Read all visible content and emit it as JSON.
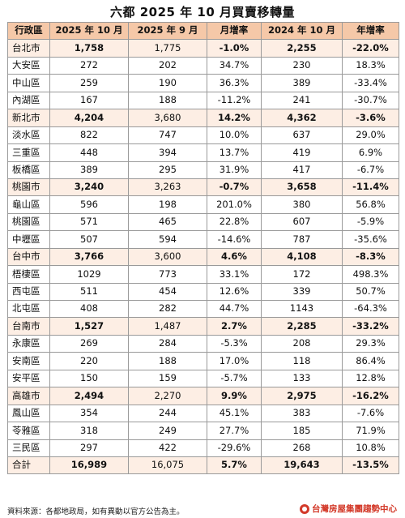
{
  "title": "六都 2025 年 10 月買賣移轉量",
  "headers": [
    "行政區",
    "2025 年 10 月",
    "2025 年 9 月",
    "月增率",
    "2024 年 10 月",
    "年增率"
  ],
  "rows": [
    {
      "type": "city",
      "cells": [
        "台北市",
        "1,758",
        "1,775",
        "-1.0%",
        "2,255",
        "-22.0%"
      ]
    },
    {
      "type": "district",
      "cells": [
        "大安區",
        "272",
        "202",
        "34.7%",
        "230",
        "18.3%"
      ]
    },
    {
      "type": "district",
      "cells": [
        "中山區",
        "259",
        "190",
        "36.3%",
        "389",
        "-33.4%"
      ]
    },
    {
      "type": "district",
      "cells": [
        "內湖區",
        "167",
        "188",
        "-11.2%",
        "241",
        "-30.7%"
      ]
    },
    {
      "type": "city",
      "cells": [
        "新北市",
        "4,204",
        "3,680",
        "14.2%",
        "4,362",
        "-3.6%"
      ]
    },
    {
      "type": "district",
      "cells": [
        "淡水區",
        "822",
        "747",
        "10.0%",
        "637",
        "29.0%"
      ]
    },
    {
      "type": "district",
      "cells": [
        "三重區",
        "448",
        "394",
        "13.7%",
        "419",
        "6.9%"
      ]
    },
    {
      "type": "district",
      "cells": [
        "板橋區",
        "389",
        "295",
        "31.9%",
        "417",
        "-6.7%"
      ]
    },
    {
      "type": "city",
      "cells": [
        "桃園市",
        "3,240",
        "3,263",
        "-0.7%",
        "3,658",
        "-11.4%"
      ]
    },
    {
      "type": "district",
      "cells": [
        "龜山區",
        "596",
        "198",
        "201.0%",
        "380",
        "56.8%"
      ]
    },
    {
      "type": "district",
      "cells": [
        "桃園區",
        "571",
        "465",
        "22.8%",
        "607",
        "-5.9%"
      ]
    },
    {
      "type": "district",
      "cells": [
        "中壢區",
        "507",
        "594",
        "-14.6%",
        "787",
        "-35.6%"
      ]
    },
    {
      "type": "city",
      "cells": [
        "台中市",
        "3,766",
        "3,600",
        "4.6%",
        "4,108",
        "-8.3%"
      ]
    },
    {
      "type": "district",
      "cells": [
        "梧棲區",
        "1029",
        "773",
        "33.1%",
        "172",
        "498.3%"
      ]
    },
    {
      "type": "district",
      "cells": [
        "西屯區",
        "511",
        "454",
        "12.6%",
        "339",
        "50.7%"
      ]
    },
    {
      "type": "district",
      "cells": [
        "北屯區",
        "408",
        "282",
        "44.7%",
        "1143",
        "-64.3%"
      ]
    },
    {
      "type": "city",
      "cells": [
        "台南市",
        "1,527",
        "1,487",
        "2.7%",
        "2,285",
        "-33.2%"
      ]
    },
    {
      "type": "district",
      "cells": [
        "永康區",
        "269",
        "284",
        "-5.3%",
        "208",
        "29.3%"
      ]
    },
    {
      "type": "district",
      "cells": [
        "安南區",
        "220",
        "188",
        "17.0%",
        "118",
        "86.4%"
      ]
    },
    {
      "type": "district",
      "cells": [
        "安平區",
        "150",
        "159",
        "-5.7%",
        "133",
        "12.8%"
      ]
    },
    {
      "type": "city",
      "cells": [
        "高雄市",
        "2,494",
        "2,270",
        "9.9%",
        "2,975",
        "-16.2%"
      ]
    },
    {
      "type": "district",
      "cells": [
        "鳳山區",
        "354",
        "244",
        "45.1%",
        "383",
        "-7.6%"
      ]
    },
    {
      "type": "district",
      "cells": [
        "苓雅區",
        "318",
        "249",
        "27.7%",
        "185",
        "71.9%"
      ]
    },
    {
      "type": "district",
      "cells": [
        "三民區",
        "297",
        "422",
        "-29.6%",
        "268",
        "10.8%"
      ]
    },
    {
      "type": "total",
      "cells": [
        "合計",
        "16,989",
        "16,075",
        "5.7%",
        "19,643",
        "-13.5%"
      ]
    }
  ],
  "footer": {
    "source": "資料來源：各都地政局，如有異動以官方公告為主。",
    "brand": "台灣房屋集團趨勢中心",
    "brand_color": "#d33a2a",
    "logo_icon": "house-logo-icon"
  },
  "colors": {
    "header_bg": "#f5c8a8",
    "highlight_bg": "#fdeee4",
    "border": "#9a9a9a"
  }
}
